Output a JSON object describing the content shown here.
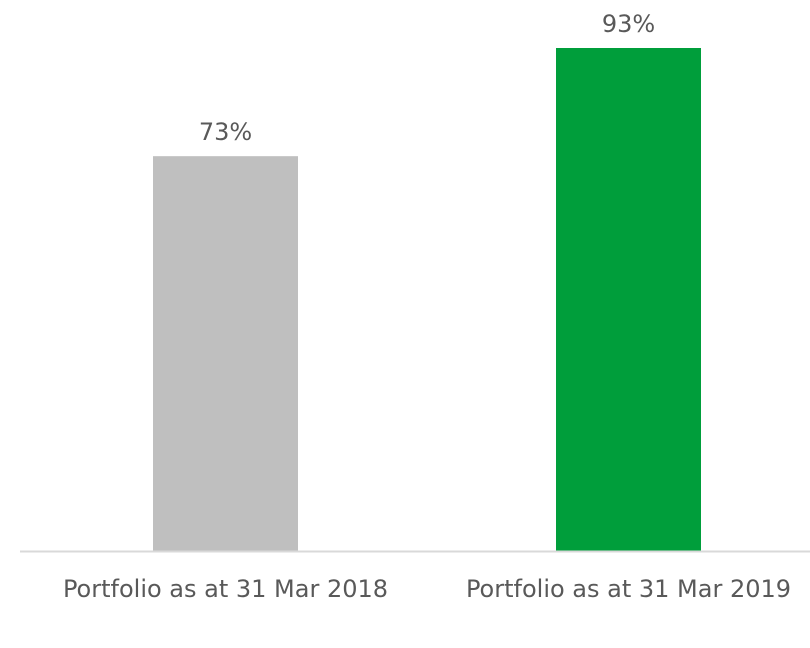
{
  "chart_data": {
    "type": "bar",
    "categories": [
      "Portfolio as at 31 Mar 2018",
      "Portfolio as at 31 Mar 2019"
    ],
    "values": [
      73,
      93
    ],
    "value_labels": [
      "73%",
      "93%"
    ],
    "colors": [
      "#bfbfbf",
      "#009e3b"
    ]
  }
}
